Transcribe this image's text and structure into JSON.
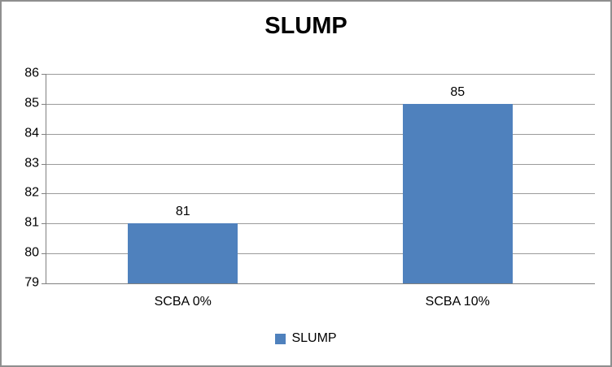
{
  "chart_data": {
    "type": "bar",
    "title": "SLUMP",
    "categories": [
      "SCBA 0%",
      "SCBA 10%"
    ],
    "series": [
      {
        "name": "SLUMP",
        "values": [
          81,
          85
        ]
      }
    ],
    "data_labels": [
      "81",
      "85"
    ],
    "xlabel": "",
    "ylabel": "",
    "ylim": [
      79,
      86
    ],
    "yticks": [
      86,
      85,
      84,
      83,
      82,
      81,
      80,
      79
    ],
    "grid": true,
    "legend": {
      "position": "bottom",
      "entries": [
        "SLUMP"
      ]
    },
    "colors": {
      "bar": "#4f81bd",
      "gridline": "#9a9a9a",
      "axis": "#808080",
      "frame": "#8f8f8f",
      "text": "#000000",
      "background": "#ffffff"
    }
  }
}
